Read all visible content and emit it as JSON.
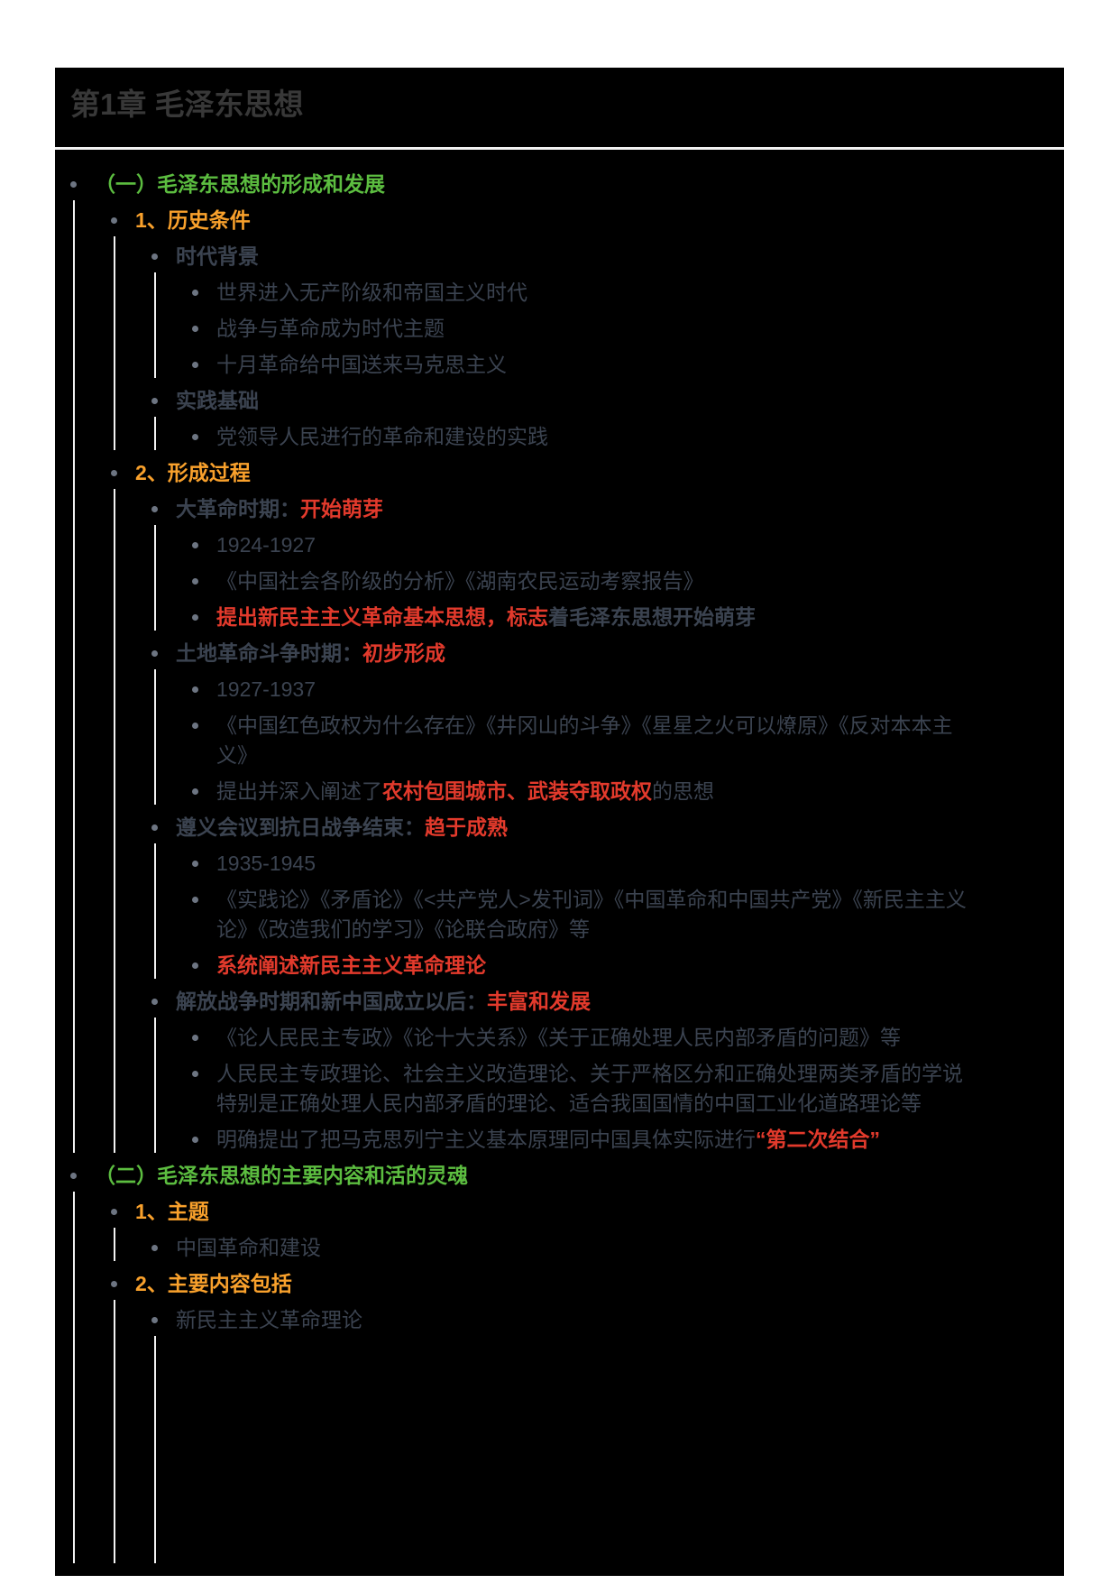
{
  "page": {
    "title": "第1章 毛泽东思想"
  },
  "colors": {
    "green": "#5CBD40",
    "orange": "#F9A12C",
    "red": "#E23A2C",
    "dark": "#3B4350",
    "bullet": "#6D7582",
    "guide": "#F2F2F2",
    "title": "#383838",
    "card_bg": "#000000",
    "page_bg": "#FFFFFF"
  },
  "outline": [
    {
      "level": 1,
      "segments": [
        {
          "text": "（一）毛泽东思想的形成和发展",
          "style": "green"
        }
      ]
    },
    {
      "level": 2,
      "segments": [
        {
          "text": "1、历史条件",
          "style": "orange"
        }
      ]
    },
    {
      "level": 3,
      "segments": [
        {
          "text": "时代背景",
          "style": "dark-bold"
        }
      ]
    },
    {
      "level": 4,
      "segments": [
        {
          "text": "世界进入无产阶级和帝国主义时代",
          "style": "dark"
        }
      ]
    },
    {
      "level": 4,
      "segments": [
        {
          "text": "战争与革命成为时代主题",
          "style": "dark"
        }
      ]
    },
    {
      "level": 4,
      "segments": [
        {
          "text": "十月革命给中国送来马克思主义",
          "style": "dark"
        }
      ]
    },
    {
      "level": 3,
      "segments": [
        {
          "text": "实践基础",
          "style": "dark-bold"
        }
      ]
    },
    {
      "level": 4,
      "segments": [
        {
          "text": "党领导人民进行的革命和建设的实践",
          "style": "dark"
        }
      ]
    },
    {
      "level": 2,
      "segments": [
        {
          "text": "2、形成过程",
          "style": "orange"
        }
      ]
    },
    {
      "level": 3,
      "segments": [
        {
          "text": "大革命时期：",
          "style": "dark-bold"
        },
        {
          "text": "开始萌芽",
          "style": "red"
        }
      ]
    },
    {
      "level": 4,
      "segments": [
        {
          "text": "1924-1927",
          "style": "dark"
        }
      ]
    },
    {
      "level": 4,
      "segments": [
        {
          "text": "《中国社会各阶级的分析》《湖南农民运动考察报告》",
          "style": "dark"
        }
      ]
    },
    {
      "level": 4,
      "segments": [
        {
          "text": "提出新民主主义革命基本思想，标志",
          "style": "red"
        },
        {
          "text": "着毛泽东思想开始萌芽",
          "style": "dark-bold"
        }
      ]
    },
    {
      "level": 3,
      "segments": [
        {
          "text": "土地革命斗争时期：",
          "style": "dark-bold"
        },
        {
          "text": "初步形成",
          "style": "red"
        }
      ]
    },
    {
      "level": 4,
      "segments": [
        {
          "text": "1927-1937",
          "style": "dark"
        }
      ]
    },
    {
      "level": 4,
      "segments": [
        {
          "text": "《中国红色政权为什么存在》《井冈山的斗争》《星星之火可以燎原》《反对本本主义》",
          "style": "dark"
        }
      ]
    },
    {
      "level": 4,
      "segments": [
        {
          "text": "提出并深入阐述了",
          "style": "dark"
        },
        {
          "text": "农村包围城市、武装夺取政权",
          "style": "red"
        },
        {
          "text": "的思想",
          "style": "dark"
        }
      ]
    },
    {
      "level": 3,
      "segments": [
        {
          "text": "遵义会议到抗日战争结束：",
          "style": "dark-bold"
        },
        {
          "text": "趋于成熟",
          "style": "red"
        }
      ]
    },
    {
      "level": 4,
      "segments": [
        {
          "text": "1935-1945",
          "style": "dark"
        }
      ]
    },
    {
      "level": 4,
      "segments": [
        {
          "text": "《实践论》《矛盾论》《<共产党人>发刊词》《中国革命和中国共产党》《新民主主义论》《改造我们的学习》《论联合政府》等",
          "style": "dark"
        }
      ]
    },
    {
      "level": 4,
      "segments": [
        {
          "text": "系统阐述新民主主义革命理论",
          "style": "red"
        }
      ]
    },
    {
      "level": 3,
      "segments": [
        {
          "text": "解放战争时期和新中国成立以后：",
          "style": "dark-bold"
        },
        {
          "text": "丰富和发展",
          "style": "red"
        }
      ]
    },
    {
      "level": 4,
      "segments": [
        {
          "text": "《论人民民主专政》《论十大关系》《关于正确处理人民内部矛盾的问题》等",
          "style": "dark"
        }
      ]
    },
    {
      "level": 4,
      "segments": [
        {
          "text": "人民民主专政理论、社会主义改造理论、关于严格区分和正确处理两类矛盾的学说特别是正确处理人民内部矛盾的理论、适合我国国情的中国工业化道路理论等",
          "style": "dark"
        }
      ]
    },
    {
      "level": 4,
      "segments": [
        {
          "text": "明确提出了把马克思列宁主义基本原理同中国具体实际进行",
          "style": "dark"
        },
        {
          "text": "“第二次结合”",
          "style": "red"
        }
      ]
    },
    {
      "level": 1,
      "segments": [
        {
          "text": "（二）毛泽东思想的主要内容和活的灵魂",
          "style": "green"
        }
      ]
    },
    {
      "level": 2,
      "segments": [
        {
          "text": "1、主题",
          "style": "orange"
        }
      ]
    },
    {
      "level": 3,
      "segments": [
        {
          "text": "中国革命和建设",
          "style": "dark"
        }
      ]
    },
    {
      "level": 2,
      "segments": [
        {
          "text": "2、主要内容包括",
          "style": "orange"
        }
      ]
    },
    {
      "level": 3,
      "segments": [
        {
          "text": "新民主主义革命理论",
          "style": "dark"
        }
      ],
      "cut_below": true
    }
  ]
}
